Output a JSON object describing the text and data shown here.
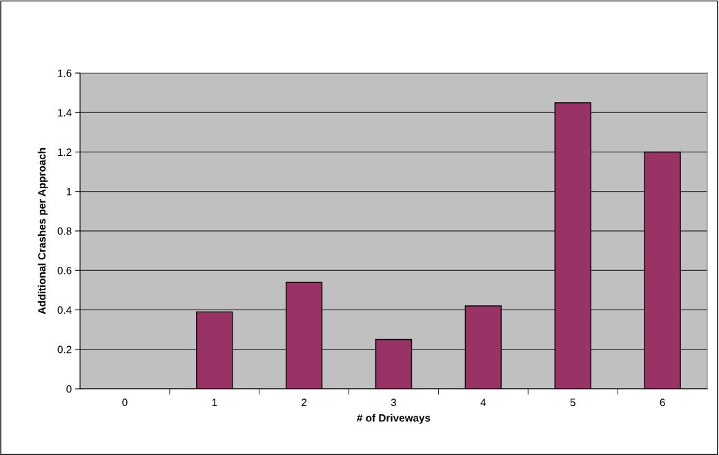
{
  "chart_data": {
    "type": "bar",
    "xlabel": "# of Driveways",
    "ylabel": "Additional Crashes per Approach",
    "categories": [
      "0",
      "1",
      "2",
      "3",
      "4",
      "5",
      "6"
    ],
    "values": [
      0,
      0.39,
      0.54,
      0.25,
      0.42,
      1.45,
      1.2
    ],
    "color": "#993366",
    "ylim": [
      0,
      1.6
    ],
    "yticks": [
      0,
      0.2,
      0.4,
      0.6,
      0.8,
      1,
      1.2,
      1.4,
      1.6
    ],
    "grid": "y",
    "legend": false
  }
}
